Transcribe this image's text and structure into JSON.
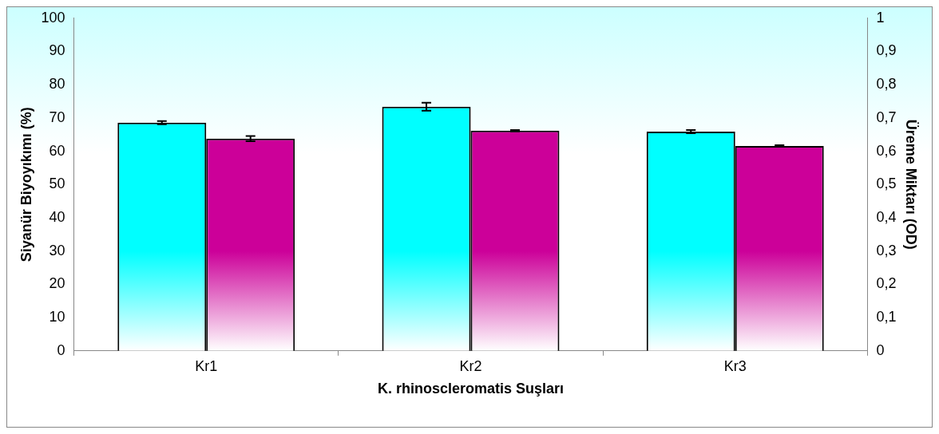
{
  "chart_data": {
    "type": "bar",
    "xlabel": "K. rhinoscleromatis Suşları",
    "ylabel": "Siyanür Biyoyıkımı (%)",
    "y2label": "Üreme Miktarı (OD)",
    "categories": [
      "Kr1",
      "Kr2",
      "Kr3"
    ],
    "series": [
      {
        "color": "#00ffff",
        "values": [
          68.6,
          73.4,
          65.9
        ],
        "errors": [
          0.5,
          1.2,
          0.5
        ]
      },
      {
        "color": "#cc0099",
        "values": [
          0.638,
          0.662,
          0.616
        ],
        "errors": [
          0.008,
          0.002,
          0.002
        ],
        "axis": "y2"
      }
    ],
    "ylim": [
      0,
      100
    ],
    "yticks": [
      0,
      10,
      20,
      30,
      40,
      50,
      60,
      70,
      80,
      90,
      100
    ],
    "y2lim": [
      0,
      1
    ],
    "y2ticks": [
      0,
      {
        "value": 0.1,
        "label": "0,1"
      },
      {
        "value": 0.2,
        "label": "0,2"
      },
      {
        "value": 0.3,
        "label": "0,3"
      },
      {
        "value": 0.4,
        "label": "0,4"
      },
      {
        "value": 0.5,
        "label": "0,5"
      },
      {
        "value": 0.6,
        "label": "0,6"
      },
      {
        "value": 0.7,
        "label": "0,7"
      },
      {
        "value": 0.8,
        "label": "0,8"
      },
      {
        "value": 0.9,
        "label": "0,9"
      },
      1
    ],
    "grid": false,
    "legend": false
  }
}
